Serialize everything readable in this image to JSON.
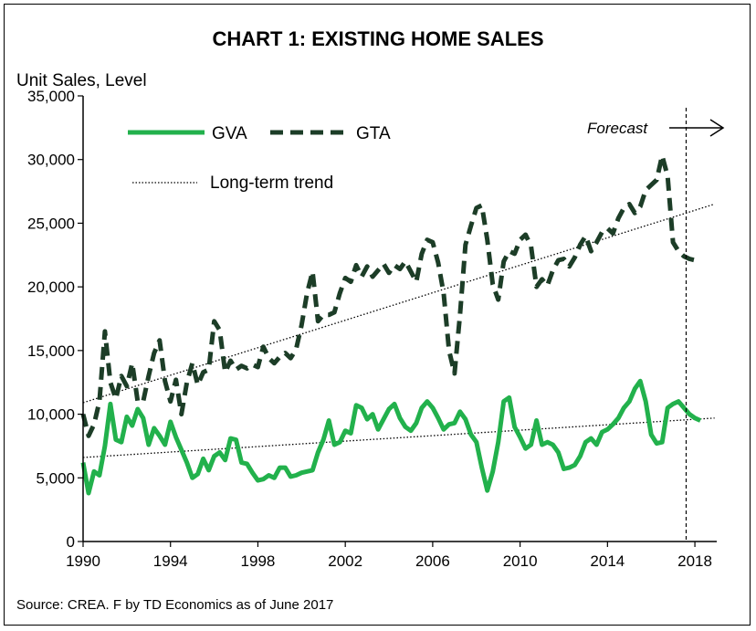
{
  "chart_data": {
    "type": "line",
    "title": "CHART 1: EXISTING HOME SALES",
    "ylabel": "Unit Sales, Level",
    "source": "Source: CREA. F by TD Economics as of  June 2017",
    "xlim": [
      1990,
      2019
    ],
    "ylim": [
      0,
      35000
    ],
    "x_ticks": [
      1990,
      1994,
      1998,
      2002,
      2006,
      2010,
      2014,
      2018
    ],
    "y_ticks": [
      {
        "value": 0,
        "label": "0"
      },
      {
        "value": 5000,
        "label": "5,000"
      },
      {
        "value": 10000,
        "label": "10,000"
      },
      {
        "value": 15000,
        "label": "15,000"
      },
      {
        "value": 20000,
        "label": "20,000"
      },
      {
        "value": 25000,
        "label": "25,000"
      },
      {
        "value": 30000,
        "label": "30,000"
      },
      {
        "value": 35000,
        "label": "35,000"
      }
    ],
    "grid": false,
    "legend_position": "top-left",
    "forecast": {
      "label": "Forecast",
      "x": 2017.6
    },
    "colors": {
      "gva": "#22b14c",
      "gta": "#1c3d27",
      "trend": "#000000"
    },
    "series": [
      {
        "name": "GVA",
        "style": "solid",
        "points": [
          [
            1990.0,
            6200
          ],
          [
            1990.25,
            3800
          ],
          [
            1990.5,
            5500
          ],
          [
            1990.75,
            5200
          ],
          [
            1991.0,
            7500
          ],
          [
            1991.25,
            10800
          ],
          [
            1991.5,
            8000
          ],
          [
            1991.75,
            7800
          ],
          [
            1992.0,
            9800
          ],
          [
            1992.25,
            9100
          ],
          [
            1992.5,
            10400
          ],
          [
            1992.75,
            9700
          ],
          [
            1993.0,
            7600
          ],
          [
            1993.25,
            8900
          ],
          [
            1993.5,
            8300
          ],
          [
            1993.75,
            7600
          ],
          [
            1994.0,
            9400
          ],
          [
            1994.25,
            8200
          ],
          [
            1994.5,
            7200
          ],
          [
            1994.75,
            6200
          ],
          [
            1995.0,
            5000
          ],
          [
            1995.25,
            5300
          ],
          [
            1995.5,
            6500
          ],
          [
            1995.75,
            5600
          ],
          [
            1996.0,
            6700
          ],
          [
            1996.25,
            7000
          ],
          [
            1996.5,
            6400
          ],
          [
            1996.75,
            8100
          ],
          [
            1997.0,
            8000
          ],
          [
            1997.25,
            6200
          ],
          [
            1997.5,
            6100
          ],
          [
            1997.75,
            5400
          ],
          [
            1998.0,
            4800
          ],
          [
            1998.25,
            4900
          ],
          [
            1998.5,
            5200
          ],
          [
            1998.75,
            5000
          ],
          [
            1999.0,
            5800
          ],
          [
            1999.25,
            5800
          ],
          [
            1999.5,
            5100
          ],
          [
            1999.75,
            5200
          ],
          [
            2000.0,
            5400
          ],
          [
            2000.25,
            5500
          ],
          [
            2000.5,
            5600
          ],
          [
            2000.75,
            7000
          ],
          [
            2001.0,
            8000
          ],
          [
            2001.25,
            9500
          ],
          [
            2001.5,
            7600
          ],
          [
            2001.75,
            7800
          ],
          [
            2002.0,
            8700
          ],
          [
            2002.25,
            8500
          ],
          [
            2002.5,
            10700
          ],
          [
            2002.75,
            10500
          ],
          [
            2003.0,
            9600
          ],
          [
            2003.25,
            10000
          ],
          [
            2003.5,
            8800
          ],
          [
            2003.75,
            9600
          ],
          [
            2004.0,
            10400
          ],
          [
            2004.25,
            10800
          ],
          [
            2004.5,
            9700
          ],
          [
            2004.75,
            9000
          ],
          [
            2005.0,
            8700
          ],
          [
            2005.25,
            9300
          ],
          [
            2005.5,
            10500
          ],
          [
            2005.75,
            11000
          ],
          [
            2006.0,
            10500
          ],
          [
            2006.25,
            9700
          ],
          [
            2006.5,
            8800
          ],
          [
            2006.75,
            9200
          ],
          [
            2007.0,
            9300
          ],
          [
            2007.25,
            10200
          ],
          [
            2007.5,
            9600
          ],
          [
            2007.75,
            8400
          ],
          [
            2008.0,
            7800
          ],
          [
            2008.25,
            5800
          ],
          [
            2008.5,
            4000
          ],
          [
            2008.75,
            5500
          ],
          [
            2009.0,
            7800
          ],
          [
            2009.25,
            11000
          ],
          [
            2009.5,
            11300
          ],
          [
            2009.75,
            9000
          ],
          [
            2010.0,
            8200
          ],
          [
            2010.25,
            7300
          ],
          [
            2010.5,
            7600
          ],
          [
            2010.75,
            9500
          ],
          [
            2011.0,
            7600
          ],
          [
            2011.25,
            7800
          ],
          [
            2011.5,
            7600
          ],
          [
            2011.75,
            7000
          ],
          [
            2012.0,
            5700
          ],
          [
            2012.25,
            5800
          ],
          [
            2012.5,
            6000
          ],
          [
            2012.75,
            6700
          ],
          [
            2013.0,
            7800
          ],
          [
            2013.25,
            8100
          ],
          [
            2013.5,
            7600
          ],
          [
            2013.75,
            8600
          ],
          [
            2014.0,
            8800
          ],
          [
            2014.25,
            9200
          ],
          [
            2014.5,
            9700
          ],
          [
            2014.75,
            10500
          ],
          [
            2015.0,
            11000
          ],
          [
            2015.25,
            12000
          ],
          [
            2015.5,
            12600
          ],
          [
            2015.75,
            11000
          ],
          [
            2016.0,
            8400
          ],
          [
            2016.25,
            7700
          ],
          [
            2016.5,
            7800
          ],
          [
            2016.75,
            10500
          ],
          [
            2017.0,
            10800
          ],
          [
            2017.25,
            11000
          ],
          [
            2017.5,
            10500
          ],
          [
            2017.75,
            10000
          ],
          [
            2018.0,
            9700
          ],
          [
            2018.25,
            9500
          ]
        ]
      },
      {
        "name": "GTA",
        "style": "dashed",
        "points": [
          [
            1990.0,
            10000
          ],
          [
            1990.25,
            8300
          ],
          [
            1990.5,
            9200
          ],
          [
            1990.75,
            11000
          ],
          [
            1991.0,
            16500
          ],
          [
            1991.25,
            12500
          ],
          [
            1991.5,
            11200
          ],
          [
            1991.75,
            13000
          ],
          [
            1992.0,
            12200
          ],
          [
            1992.25,
            14000
          ],
          [
            1992.5,
            11000
          ],
          [
            1992.75,
            11000
          ],
          [
            1993.0,
            13000
          ],
          [
            1993.25,
            14800
          ],
          [
            1993.5,
            15800
          ],
          [
            1993.75,
            12600
          ],
          [
            1994.0,
            11000
          ],
          [
            1994.25,
            12700
          ],
          [
            1994.5,
            10000
          ],
          [
            1994.75,
            12500
          ],
          [
            1995.0,
            14000
          ],
          [
            1995.25,
            12300
          ],
          [
            1995.5,
            13300
          ],
          [
            1995.75,
            13500
          ],
          [
            1996.0,
            17300
          ],
          [
            1996.25,
            16600
          ],
          [
            1996.5,
            13300
          ],
          [
            1996.75,
            14200
          ],
          [
            1997.0,
            13500
          ],
          [
            1997.25,
            13800
          ],
          [
            1997.5,
            13600
          ],
          [
            1997.75,
            13900
          ],
          [
            1998.0,
            13700
          ],
          [
            1998.25,
            15300
          ],
          [
            1998.5,
            14400
          ],
          [
            1998.75,
            14000
          ],
          [
            1999.0,
            14500
          ],
          [
            1999.25,
            14800
          ],
          [
            1999.5,
            14400
          ],
          [
            1999.75,
            15100
          ],
          [
            2000.0,
            17000
          ],
          [
            2000.25,
            19500
          ],
          [
            2000.5,
            21200
          ],
          [
            2000.75,
            17300
          ],
          [
            2001.0,
            17800
          ],
          [
            2001.25,
            17800
          ],
          [
            2001.5,
            18000
          ],
          [
            2001.75,
            19500
          ],
          [
            2002.0,
            20700
          ],
          [
            2002.25,
            20400
          ],
          [
            2002.5,
            21700
          ],
          [
            2002.75,
            20800
          ],
          [
            2003.0,
            21600
          ],
          [
            2003.25,
            20800
          ],
          [
            2003.5,
            21300
          ],
          [
            2003.75,
            21800
          ],
          [
            2004.0,
            21100
          ],
          [
            2004.25,
            21700
          ],
          [
            2004.5,
            21400
          ],
          [
            2004.75,
            22000
          ],
          [
            2005.0,
            21200
          ],
          [
            2005.25,
            20400
          ],
          [
            2005.5,
            22600
          ],
          [
            2005.75,
            23700
          ],
          [
            2006.0,
            23500
          ],
          [
            2006.25,
            21900
          ],
          [
            2006.5,
            19500
          ],
          [
            2006.75,
            15000
          ],
          [
            2007.0,
            13200
          ],
          [
            2007.25,
            17800
          ],
          [
            2007.5,
            23300
          ],
          [
            2007.75,
            24800
          ],
          [
            2008.0,
            26200
          ],
          [
            2008.25,
            26400
          ],
          [
            2008.5,
            23700
          ],
          [
            2008.75,
            20200
          ],
          [
            2009.0,
            19000
          ],
          [
            2009.25,
            22000
          ],
          [
            2009.5,
            22800
          ],
          [
            2009.75,
            22600
          ],
          [
            2010.0,
            23700
          ],
          [
            2010.25,
            24100
          ],
          [
            2010.5,
            23200
          ],
          [
            2010.75,
            20000
          ],
          [
            2011.0,
            20600
          ],
          [
            2011.25,
            20100
          ],
          [
            2011.5,
            21300
          ],
          [
            2011.75,
            22100
          ],
          [
            2012.0,
            22200
          ],
          [
            2012.25,
            21600
          ],
          [
            2012.5,
            22300
          ],
          [
            2012.75,
            23300
          ],
          [
            2013.0,
            24000
          ],
          [
            2013.25,
            22800
          ],
          [
            2013.5,
            23500
          ],
          [
            2013.75,
            24300
          ],
          [
            2014.0,
            24600
          ],
          [
            2014.25,
            24200
          ],
          [
            2014.5,
            25400
          ],
          [
            2014.75,
            26200
          ],
          [
            2015.0,
            26500
          ],
          [
            2015.25,
            25800
          ],
          [
            2015.5,
            26300
          ],
          [
            2015.75,
            27600
          ],
          [
            2016.0,
            28000
          ],
          [
            2016.25,
            28400
          ],
          [
            2016.5,
            30300
          ],
          [
            2016.75,
            28700
          ],
          [
            2017.0,
            23500
          ],
          [
            2017.25,
            22800
          ],
          [
            2017.5,
            22400
          ],
          [
            2017.75,
            22200
          ],
          [
            2018.0,
            22100
          ],
          [
            2018.25,
            22100
          ]
        ]
      },
      {
        "name": "Long-term trend",
        "style": "dotted",
        "points": [
          [
            1990.0,
            10900
          ],
          [
            2018.9,
            26500
          ]
        ]
      },
      {
        "name": "",
        "style": "dotted",
        "points": [
          [
            1990.0,
            6600
          ],
          [
            2018.9,
            9700
          ]
        ]
      }
    ]
  }
}
